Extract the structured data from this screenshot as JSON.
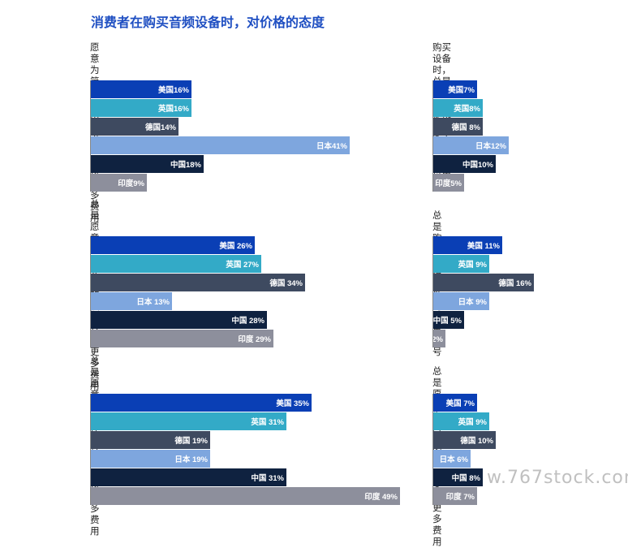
{
  "title": "消费者在购买音频设备时，对价格的态度",
  "colors": {
    "美国": "#0a3fb5",
    "英国": "#33aac7",
    "德国": "#3e4a60",
    "日本": "#7ea6de",
    "中国": "#0f2240",
    "印度": "#8d8f9c"
  },
  "watermark": "w.767stock.com",
  "chart_data": [
    {
      "type": "bar",
      "title": "愿意为简单易用\n的设备支付更多\n费用",
      "categories": [
        "美国",
        "英国",
        "德国",
        "日本",
        "中国",
        "印度"
      ],
      "values": [
        16,
        16,
        14,
        41,
        18,
        9
      ],
      "labels": [
        "美国16%",
        "英国16%",
        "德国14%",
        "日本41%",
        "中国18%",
        "印度9%"
      ]
    },
    {
      "type": "bar",
      "title": "总是愿意为最先\n进的技术支付更\n多费用",
      "categories": [
        "美国",
        "英国",
        "德国",
        "日本",
        "中国",
        "印度"
      ],
      "values": [
        26,
        27,
        34,
        13,
        28,
        29
      ],
      "labels": [
        "美国 26%",
        "英国 27%",
        "德国 34%",
        "日本 13%",
        "中国 28%",
        "印度 29%"
      ]
    },
    {
      "type": "bar",
      "title": "总是愿意为信任\n的品牌支付更多\n费用",
      "categories": [
        "美国",
        "英国",
        "德国",
        "日本",
        "中国",
        "印度"
      ],
      "values": [
        35,
        31,
        19,
        19,
        31,
        49
      ],
      "labels": [
        "美国 35%",
        "英国 31%",
        "德国 19%",
        "日本 19%",
        "中国 31%",
        "印度 49%"
      ]
    },
    {
      "type": "bar",
      "title": "购买设备时，总是愿\n意为便携的设备支付\n更多费用",
      "categories": [
        "美国",
        "英国",
        "德国",
        "日本",
        "中国",
        "印度"
      ],
      "values": [
        7,
        8,
        8,
        12,
        10,
        5
      ],
      "labels": [
        "美国7%",
        "英国8%",
        "德国  8%",
        "日本12%",
        "中国10%",
        "印度5%"
      ]
    },
    {
      "type": "bar",
      "title": "总是购买价格最低的\n设备型号",
      "categories": [
        "美国",
        "英国",
        "德国",
        "日本",
        "中国",
        "印度"
      ],
      "values": [
        11,
        9,
        16,
        9,
        5,
        2
      ],
      "labels": [
        "美国 11%",
        "英国 9%",
        "德国 16%",
        "日本 9%",
        "中国 5%",
        "印度  2%"
      ]
    },
    {
      "type": "bar",
      "title": "总是愿意为时尚的设\n备支付更多费用",
      "categories": [
        "美国",
        "英国",
        "德国",
        "日本",
        "中国",
        "印度"
      ],
      "values": [
        7,
        9,
        10,
        6,
        8,
        7
      ],
      "labels": [
        "美国 7%",
        "英国 9%",
        "德国 10%",
        "日本 6%",
        "中国 8%",
        "印度 7%"
      ]
    }
  ]
}
